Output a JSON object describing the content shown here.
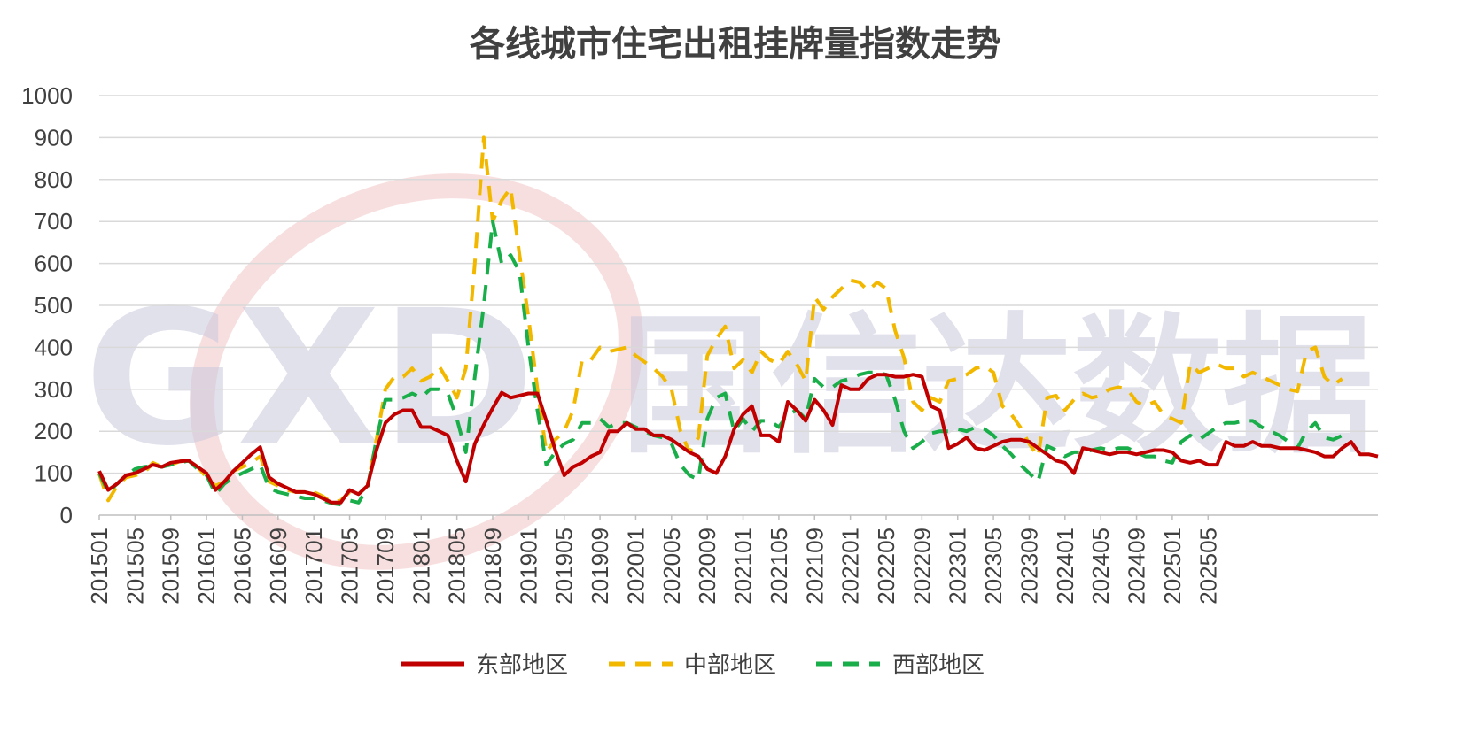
{
  "watermark": {
    "logo_text": "GXD",
    "name": "国信达数据"
  },
  "chart_data": {
    "type": "line",
    "title": "各线城市住宅出租挂牌量指数走势",
    "xlabel": "",
    "ylabel": "",
    "ylim": [
      0,
      1000
    ],
    "yticks": [
      0,
      100,
      200,
      300,
      400,
      500,
      600,
      700,
      800,
      900,
      1000
    ],
    "grid": true,
    "legend": "bottom",
    "x_start": "2015-01",
    "x_tick_labels": [
      "201501",
      "201505",
      "201509",
      "201601",
      "201605",
      "201609",
      "201701",
      "201705",
      "201709",
      "201801",
      "201805",
      "201809",
      "201901",
      "201905",
      "201909",
      "202001",
      "202005",
      "202009",
      "202101",
      "202105",
      "202109",
      "202201",
      "202205",
      "202209",
      "202301",
      "202305",
      "202309",
      "202401",
      "202405",
      "202409",
      "202501",
      "202505"
    ],
    "series": [
      {
        "name": "东部地区",
        "color": "#c00000",
        "dash": "solid",
        "values": [
          105,
          60,
          75,
          95,
          100,
          110,
          120,
          115,
          125,
          128,
          130,
          115,
          100,
          60,
          80,
          105,
          125,
          145,
          162,
          90,
          75,
          65,
          55,
          55,
          50,
          40,
          30,
          30,
          60,
          50,
          70,
          155,
          220,
          240,
          250,
          250,
          210,
          210,
          200,
          190,
          130,
          80,
          170,
          215,
          255,
          292,
          280,
          285,
          290,
          290,
          225,
          155,
          95,
          115,
          125,
          140,
          150,
          200,
          200,
          220,
          205,
          205,
          190,
          190,
          180,
          165,
          150,
          140,
          110,
          100,
          140,
          205,
          240,
          260,
          190,
          190,
          175,
          270,
          250,
          225,
          275,
          250,
          215,
          310,
          300,
          300,
          325,
          335,
          335,
          330,
          330,
          335,
          330,
          260,
          250,
          160,
          170,
          185,
          160,
          155,
          165,
          175,
          180,
          180,
          175,
          160,
          145,
          130,
          125,
          100,
          160,
          155,
          150,
          145,
          150,
          150,
          145,
          150,
          155,
          155,
          150,
          130,
          125,
          130,
          120,
          120,
          175,
          165,
          165,
          175,
          165,
          165,
          160,
          160,
          160,
          155,
          150,
          140,
          140,
          160,
          175,
          145,
          145,
          140
        ]
      },
      {
        "name": "中部地区",
        "color": "#f2b800",
        "dash": "dashed",
        "values": [
          98,
          35,
          70,
          90,
          95,
          100,
          125,
          115,
          120,
          128,
          130,
          115,
          90,
          70,
          80,
          105,
          115,
          125,
          140,
          80,
          70,
          60,
          55,
          55,
          55,
          45,
          30,
          35,
          55,
          50,
          70,
          180,
          300,
          330,
          330,
          350,
          320,
          330,
          355,
          320,
          280,
          350,
          600,
          900,
          700,
          750,
          780,
          620,
          470,
          300,
          150,
          180,
          200,
          250,
          370,
          370,
          400,
          390,
          395,
          400,
          380,
          365,
          350,
          330,
          300,
          200,
          150,
          185,
          380,
          420,
          450,
          350,
          370,
          340,
          390,
          370,
          360,
          390,
          360,
          320,
          520,
          490,
          520,
          540,
          560,
          555,
          535,
          555,
          540,
          440,
          375,
          270,
          250,
          280,
          270,
          320,
          325,
          335,
          350,
          355,
          340,
          260,
          240,
          210,
          170,
          140,
          280,
          285,
          250,
          275,
          290,
          280,
          285,
          300,
          305,
          300,
          270,
          260,
          270,
          240,
          230,
          220,
          360,
          340,
          350,
          360,
          350,
          350,
          330,
          340,
          330,
          320,
          310,
          300,
          295,
          390,
          400,
          330,
          310,
          325
        ]
      },
      {
        "name": "西部地区",
        "color": "#1aae4a",
        "dash": "dashed",
        "values": [
          100,
          55,
          75,
          95,
          110,
          115,
          118,
          115,
          120,
          125,
          130,
          110,
          95,
          50,
          75,
          90,
          100,
          110,
          120,
          65,
          55,
          50,
          45,
          40,
          40,
          35,
          28,
          25,
          35,
          30,
          65,
          180,
          275,
          275,
          280,
          290,
          280,
          300,
          300,
          290,
          230,
          150,
          330,
          500,
          700,
          600,
          620,
          580,
          400,
          250,
          120,
          150,
          170,
          180,
          220,
          220,
          230,
          210,
          220,
          220,
          210,
          200,
          190,
          185,
          170,
          120,
          95,
          85,
          230,
          280,
          290,
          200,
          230,
          200,
          225,
          225,
          210,
          240,
          250,
          230,
          325,
          305,
          305,
          320,
          325,
          335,
          340,
          340,
          335,
          275,
          200,
          160,
          175,
          195,
          200,
          200,
          205,
          200,
          210,
          205,
          190,
          165,
          145,
          120,
          100,
          80,
          165,
          155,
          140,
          150,
          150,
          155,
          160,
          155,
          160,
          160,
          150,
          140,
          140,
          130,
          125,
          175,
          190,
          180,
          195,
          210,
          220,
          220,
          225,
          225,
          210,
          200,
          190,
          175,
          160,
          200,
          220,
          185,
          180,
          190
        ]
      }
    ]
  }
}
